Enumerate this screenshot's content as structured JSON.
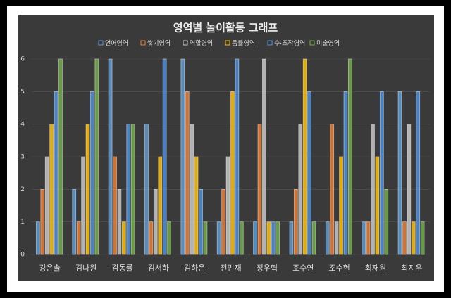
{
  "chart_data": {
    "type": "bar",
    "title": "영역별 놀이활동 그래프",
    "categories": [
      "강은솔",
      "김나원",
      "김동률",
      "김서하",
      "김하은",
      "전민재",
      "정우혁",
      "조수연",
      "조수현",
      "최재원",
      "최지우"
    ],
    "series": [
      {
        "name": "언어영역",
        "color": "#5b9bd5",
        "values": [
          1,
          2,
          6,
          4,
          6,
          1,
          1,
          1,
          1,
          1,
          5
        ]
      },
      {
        "name": "쌓기영역",
        "color": "#ed7d31",
        "values": [
          2,
          1,
          3,
          1,
          5,
          2,
          4,
          2,
          4,
          1,
          1
        ]
      },
      {
        "name": "역할영역",
        "color": "#c8c8c8",
        "values": [
          3,
          3,
          2,
          2,
          4,
          3,
          6,
          4,
          1,
          4,
          4
        ]
      },
      {
        "name": "음률영역",
        "color": "#ffc000",
        "values": [
          4,
          4,
          1,
          3,
          3,
          5,
          1,
          6,
          3,
          3,
          1
        ]
      },
      {
        "name": "수·조작영역",
        "color": "#4a8fe0",
        "values": [
          5,
          5,
          4,
          6,
          2,
          6,
          1,
          5,
          5,
          5,
          5
        ]
      },
      {
        "name": "미술영역",
        "color": "#70ad47",
        "values": [
          6,
          6,
          4,
          1,
          1,
          1,
          1,
          1,
          6,
          2,
          1
        ]
      }
    ],
    "ylim": [
      0,
      6
    ],
    "yticks": [
      0,
      1,
      2,
      3,
      4,
      5,
      6
    ],
    "grid": true
  }
}
